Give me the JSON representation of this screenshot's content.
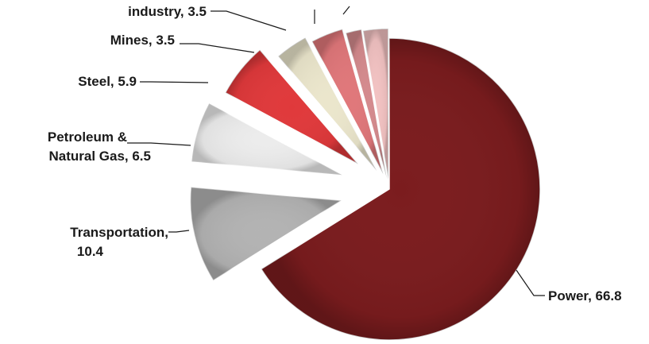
{
  "chart_data": {
    "type": "pie",
    "exploded": true,
    "slices": [
      {
        "label": "Power",
        "display": "Power, 66.8",
        "value": 66.8,
        "color": "#7b1c1e"
      },
      {
        "label": "Transportation",
        "display": [
          "Transportation,",
          "10.4"
        ],
        "value": 10.4,
        "color": "#b3b3b3"
      },
      {
        "label": "Petroleum & Natural Gas",
        "display": [
          "Petroleum &",
          "Natural Gas, 6.5"
        ],
        "value": 6.5,
        "color": "#ececec"
      },
      {
        "label": "Steel",
        "display": "Steel, 5.9",
        "value": 5.9,
        "color": "#e0393b"
      },
      {
        "label": "Mines",
        "display": "Mines, 3.5",
        "value": 3.5,
        "color": "#ebe6cc"
      },
      {
        "label": "industry",
        "display": "industry,  3.5",
        "value": 3.5,
        "color": "#e0777a"
      },
      {
        "label": "",
        "display": "",
        "value": 1.7,
        "color": "#d48a8d"
      },
      {
        "label": "",
        "display": "",
        "value": 2.7,
        "color": "#f2c2c2"
      }
    ]
  }
}
